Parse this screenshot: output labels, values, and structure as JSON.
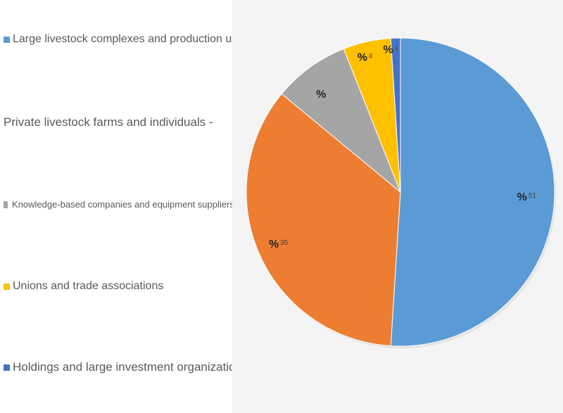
{
  "chart_data": {
    "type": "pie",
    "categories": [
      "Large livestock complexes and production units",
      "Private livestock farms and individuals -",
      "Knowledge-based companies and equipment suppliers |",
      "Unions and trade associations",
      "Holdings and large investment organizations"
    ],
    "values": [
      51,
      35,
      8,
      5,
      1
    ],
    "colors": [
      "#5b9bd5",
      "#ed7d31",
      "#a5a5a5",
      "#ffc000",
      "#4472c4"
    ],
    "data_labels": [
      {
        "symbol": "%",
        "number": "51"
      },
      {
        "symbol": "%",
        "number": "35"
      },
      {
        "symbol": "%",
        "number": ""
      },
      {
        "symbol": "%",
        "number": "٥"
      },
      {
        "symbol": "%",
        "number": "١"
      }
    ],
    "legend_position": "left"
  }
}
